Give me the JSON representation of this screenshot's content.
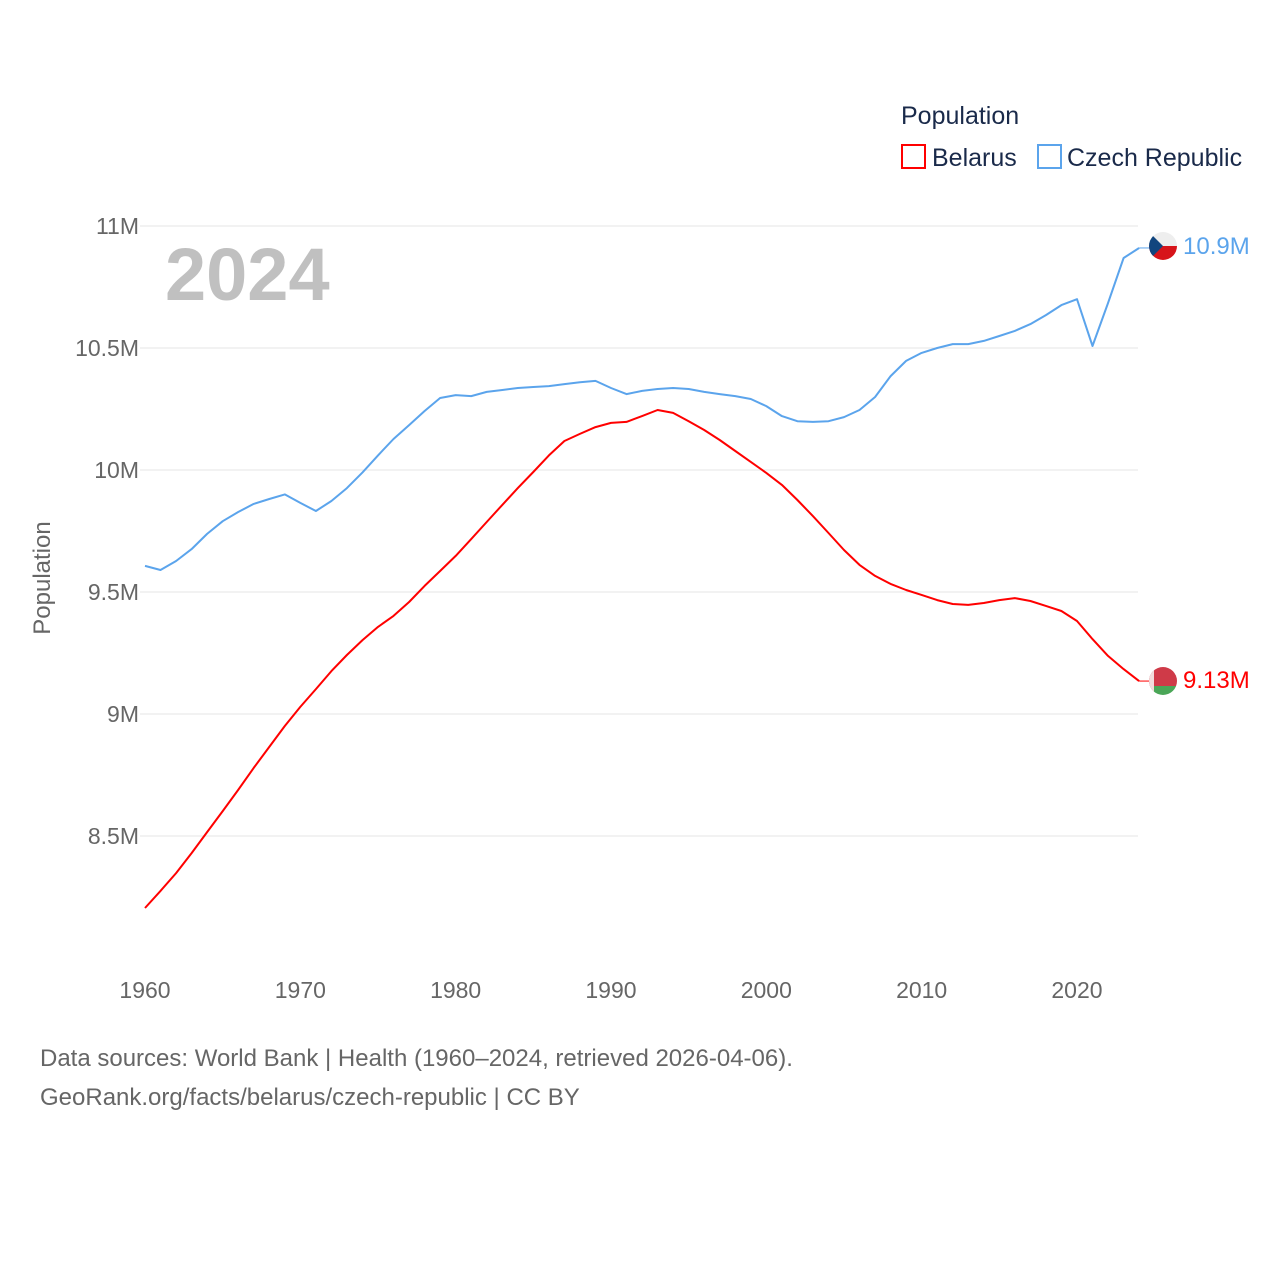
{
  "chart_data": {
    "type": "line",
    "ylabel": "Population",
    "year_label": "2024",
    "legend": {
      "title": "Population",
      "placement": "top-right"
    },
    "ylim": [
      8000000,
      11000000
    ],
    "xlim": [
      1960,
      2024
    ],
    "y_ticks": [
      {
        "value": 8500000,
        "label": "8.5M"
      },
      {
        "value": 9000000,
        "label": "9M"
      },
      {
        "value": 9500000,
        "label": "9.5M"
      },
      {
        "value": 10000000,
        "label": "10M"
      },
      {
        "value": 10500000,
        "label": "10.5M"
      },
      {
        "value": 11000000,
        "label": "11M"
      }
    ],
    "x_ticks": [
      1960,
      1970,
      1980,
      1990,
      2000,
      2010,
      2020
    ],
    "grid": true,
    "x_start": 1960,
    "series": [
      {
        "name": "Belarus",
        "color": "#ff0000",
        "end_label": "9.13M",
        "flag": "belarus-flag",
        "values_millions": [
          8.205,
          8.275,
          8.348,
          8.43,
          8.516,
          8.602,
          8.689,
          8.779,
          8.865,
          8.951,
          9.029,
          9.102,
          9.176,
          9.242,
          9.303,
          9.357,
          9.402,
          9.459,
          9.525,
          9.586,
          9.648,
          9.717,
          9.787,
          9.857,
          9.926,
          9.992,
          10.06,
          10.119,
          10.148,
          10.176,
          10.193,
          10.197,
          10.221,
          10.246,
          10.234,
          10.2,
          10.164,
          10.123,
          10.078,
          10.033,
          9.988,
          9.939,
          9.877,
          9.811,
          9.742,
          9.672,
          9.611,
          9.566,
          9.533,
          9.508,
          9.488,
          9.467,
          9.451,
          9.447,
          9.455,
          9.467,
          9.475,
          9.463,
          9.443,
          9.422,
          9.381,
          9.307,
          9.238,
          9.184,
          9.135
        ]
      },
      {
        "name": "Czech Republic",
        "color": "#5ba4ec",
        "end_label": "10.9M",
        "flag": "czech-flag",
        "values_millions": [
          9.607,
          9.59,
          9.627,
          9.676,
          9.738,
          9.79,
          9.828,
          9.861,
          9.881,
          9.9,
          9.865,
          9.832,
          9.873,
          9.926,
          9.99,
          10.06,
          10.127,
          10.184,
          10.242,
          10.295,
          10.307,
          10.303,
          10.32,
          10.328,
          10.336,
          10.34,
          10.344,
          10.352,
          10.36,
          10.365,
          10.336,
          10.311,
          10.324,
          10.332,
          10.336,
          10.332,
          10.32,
          10.311,
          10.303,
          10.291,
          10.262,
          10.221,
          10.2,
          10.197,
          10.2,
          10.217,
          10.246,
          10.299,
          10.385,
          10.447,
          10.48,
          10.5,
          10.516,
          10.516,
          10.529,
          10.549,
          10.57,
          10.598,
          10.635,
          10.676,
          10.7,
          10.508,
          10.684,
          10.869,
          10.91
        ]
      }
    ]
  },
  "footer": {
    "line1": "Data sources: World Bank | Health (1960–2024, retrieved 2026-04-06).",
    "line2": "GeoRank.org/facts/belarus/czech-republic | CC BY"
  }
}
